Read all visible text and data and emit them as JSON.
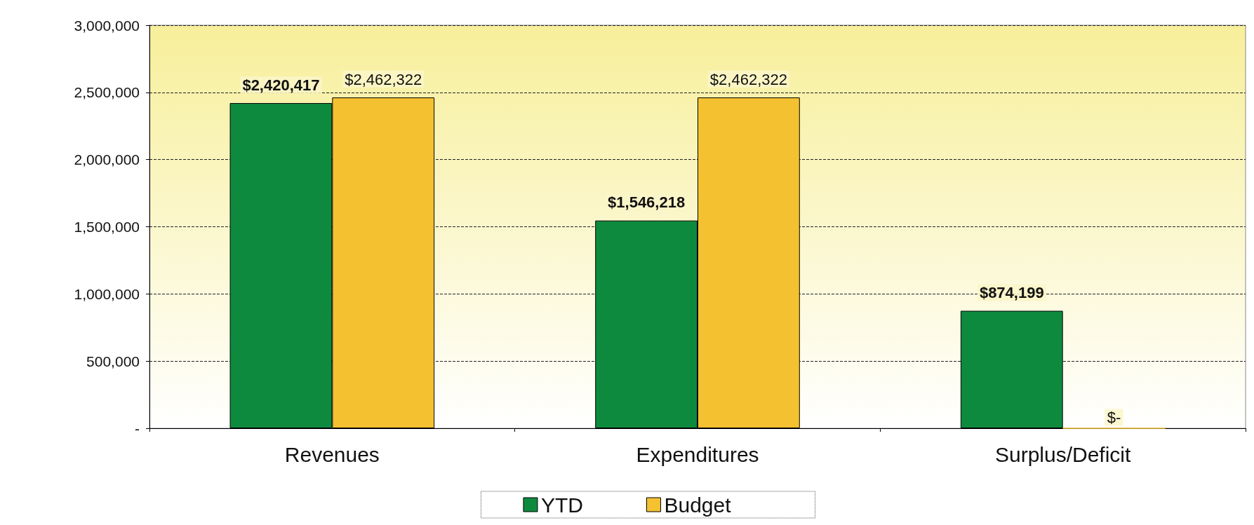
{
  "chart_data": {
    "type": "bar",
    "categories": [
      "Revenues",
      "Expenditures",
      "Surplus/Deficit"
    ],
    "series": [
      {
        "name": "YTD",
        "color": "#0e8a3e",
        "values": [
          2420417,
          1546218,
          874199
        ],
        "value_labels": [
          "$2,420,417",
          "$1,546,218",
          "$874,199"
        ]
      },
      {
        "name": "Budget",
        "color": "#f4c230",
        "values": [
          2462322,
          2462322,
          0
        ],
        "value_labels": [
          "$2,462,322",
          "$2,462,322",
          "$-"
        ]
      }
    ],
    "ylim": [
      0,
      3000000
    ],
    "yticks": [
      {
        "value": 0,
        "label": "-"
      },
      {
        "value": 500000,
        "label": "500,000"
      },
      {
        "value": 1000000,
        "label": "1,000,000"
      },
      {
        "value": 1500000,
        "label": "1,500,000"
      },
      {
        "value": 2000000,
        "label": "2,000,000"
      },
      {
        "value": 2500000,
        "label": "2,500,000"
      },
      {
        "value": 3000000,
        "label": "3,000,000"
      }
    ],
    "grid": "y",
    "line_style": "dashed",
    "legend": "bottom"
  }
}
